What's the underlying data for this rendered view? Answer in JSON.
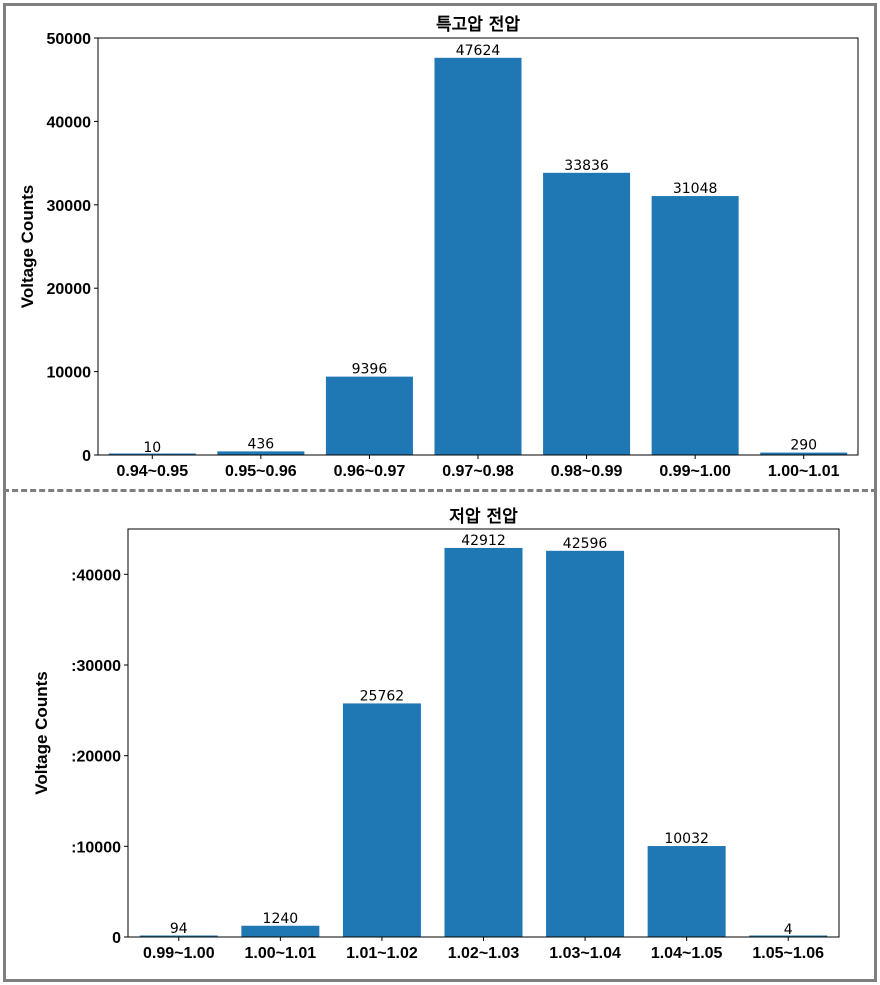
{
  "chart_data": [
    {
      "type": "bar",
      "title": "특고압 전압",
      "xlabel": "",
      "ylabel": "Voltage Counts",
      "categories": [
        "0.94~0.95",
        "0.95~0.96",
        "0.96~0.97",
        "0.97~0.98",
        "0.98~0.99",
        "0.99~1.00",
        "1.00~1.01"
      ],
      "values": [
        10,
        436,
        9396,
        47624,
        33836,
        31048,
        290
      ],
      "data_labels": [
        "10",
        "436",
        "9396",
        "47624",
        "33836",
        "31048",
        "290"
      ],
      "yticks": [
        0,
        10000,
        20000,
        30000,
        40000,
        50000
      ],
      "ytick_labels": [
        "0",
        "10000",
        "20000",
        "30000",
        "40000",
        "50000"
      ],
      "ylim": [
        0,
        50000
      ],
      "bar_color": "#1f77b4",
      "grid": false,
      "legend": "none"
    },
    {
      "type": "bar",
      "title": "저압 전압",
      "xlabel": "",
      "ylabel": "Voltage Counts",
      "categories": [
        "0.99~1.00",
        "1.00~1.01",
        "1.01~1.02",
        "1.02~1.03",
        "1.03~1.04",
        "1.04~1.05",
        "1.05~1.06"
      ],
      "values": [
        94,
        1240,
        25762,
        42912,
        42596,
        10032,
        4
      ],
      "data_labels": [
        "94",
        "1240",
        "25762",
        "42912",
        "42596",
        "10032",
        "4"
      ],
      "yticks": [
        0,
        10000,
        20000,
        30000,
        40000
      ],
      "ytick_labels": [
        "0",
        ":10000",
        ":20000",
        ":30000",
        ":40000"
      ],
      "ylim": [
        0,
        45000
      ],
      "bar_color": "#1f77b4",
      "grid": false,
      "legend": "none"
    }
  ]
}
